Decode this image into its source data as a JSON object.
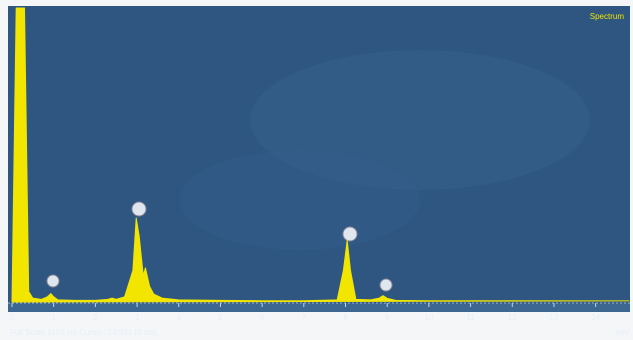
{
  "chart_data": {
    "type": "area",
    "title": "Spectrum",
    "footer": "Full Scale 1120 cts Cursor: 14.931 (5 cts)",
    "x_label": "keV",
    "series": [
      {
        "color": "#f2e600",
        "x": [
          0,
          0.1,
          0.3,
          0.4,
          0.5,
          0.7,
          0.85,
          0.93,
          1.0,
          1.1,
          1.5,
          2.0,
          2.3,
          2.4,
          2.5,
          2.7,
          2.9,
          2.98,
          3.05,
          3.15,
          3.2,
          3.3,
          3.4,
          3.6,
          4.0,
          5,
          6,
          7,
          7.8,
          7.95,
          8.04,
          8.12,
          8.25,
          8.6,
          8.8,
          8.9,
          9.0,
          9.2,
          10,
          12,
          14,
          14.8
        ],
        "values": [
          0,
          1120,
          1120,
          40,
          15,
          10,
          20,
          32,
          20,
          8,
          6,
          6,
          10,
          15,
          10,
          20,
          120,
          320,
          250,
          100,
          130,
          60,
          30,
          15,
          8,
          6,
          5,
          5,
          8,
          120,
          235,
          120,
          10,
          8,
          14,
          24,
          14,
          6,
          5,
          5,
          4,
          4
        ]
      }
    ],
    "xlim": [
      0,
      14.8
    ],
    "ylim": [
      0,
      1120
    ],
    "xticks": [
      0,
      1,
      2,
      3,
      4,
      5,
      6,
      7,
      8,
      9,
      10,
      11,
      12,
      13,
      14
    ]
  }
}
